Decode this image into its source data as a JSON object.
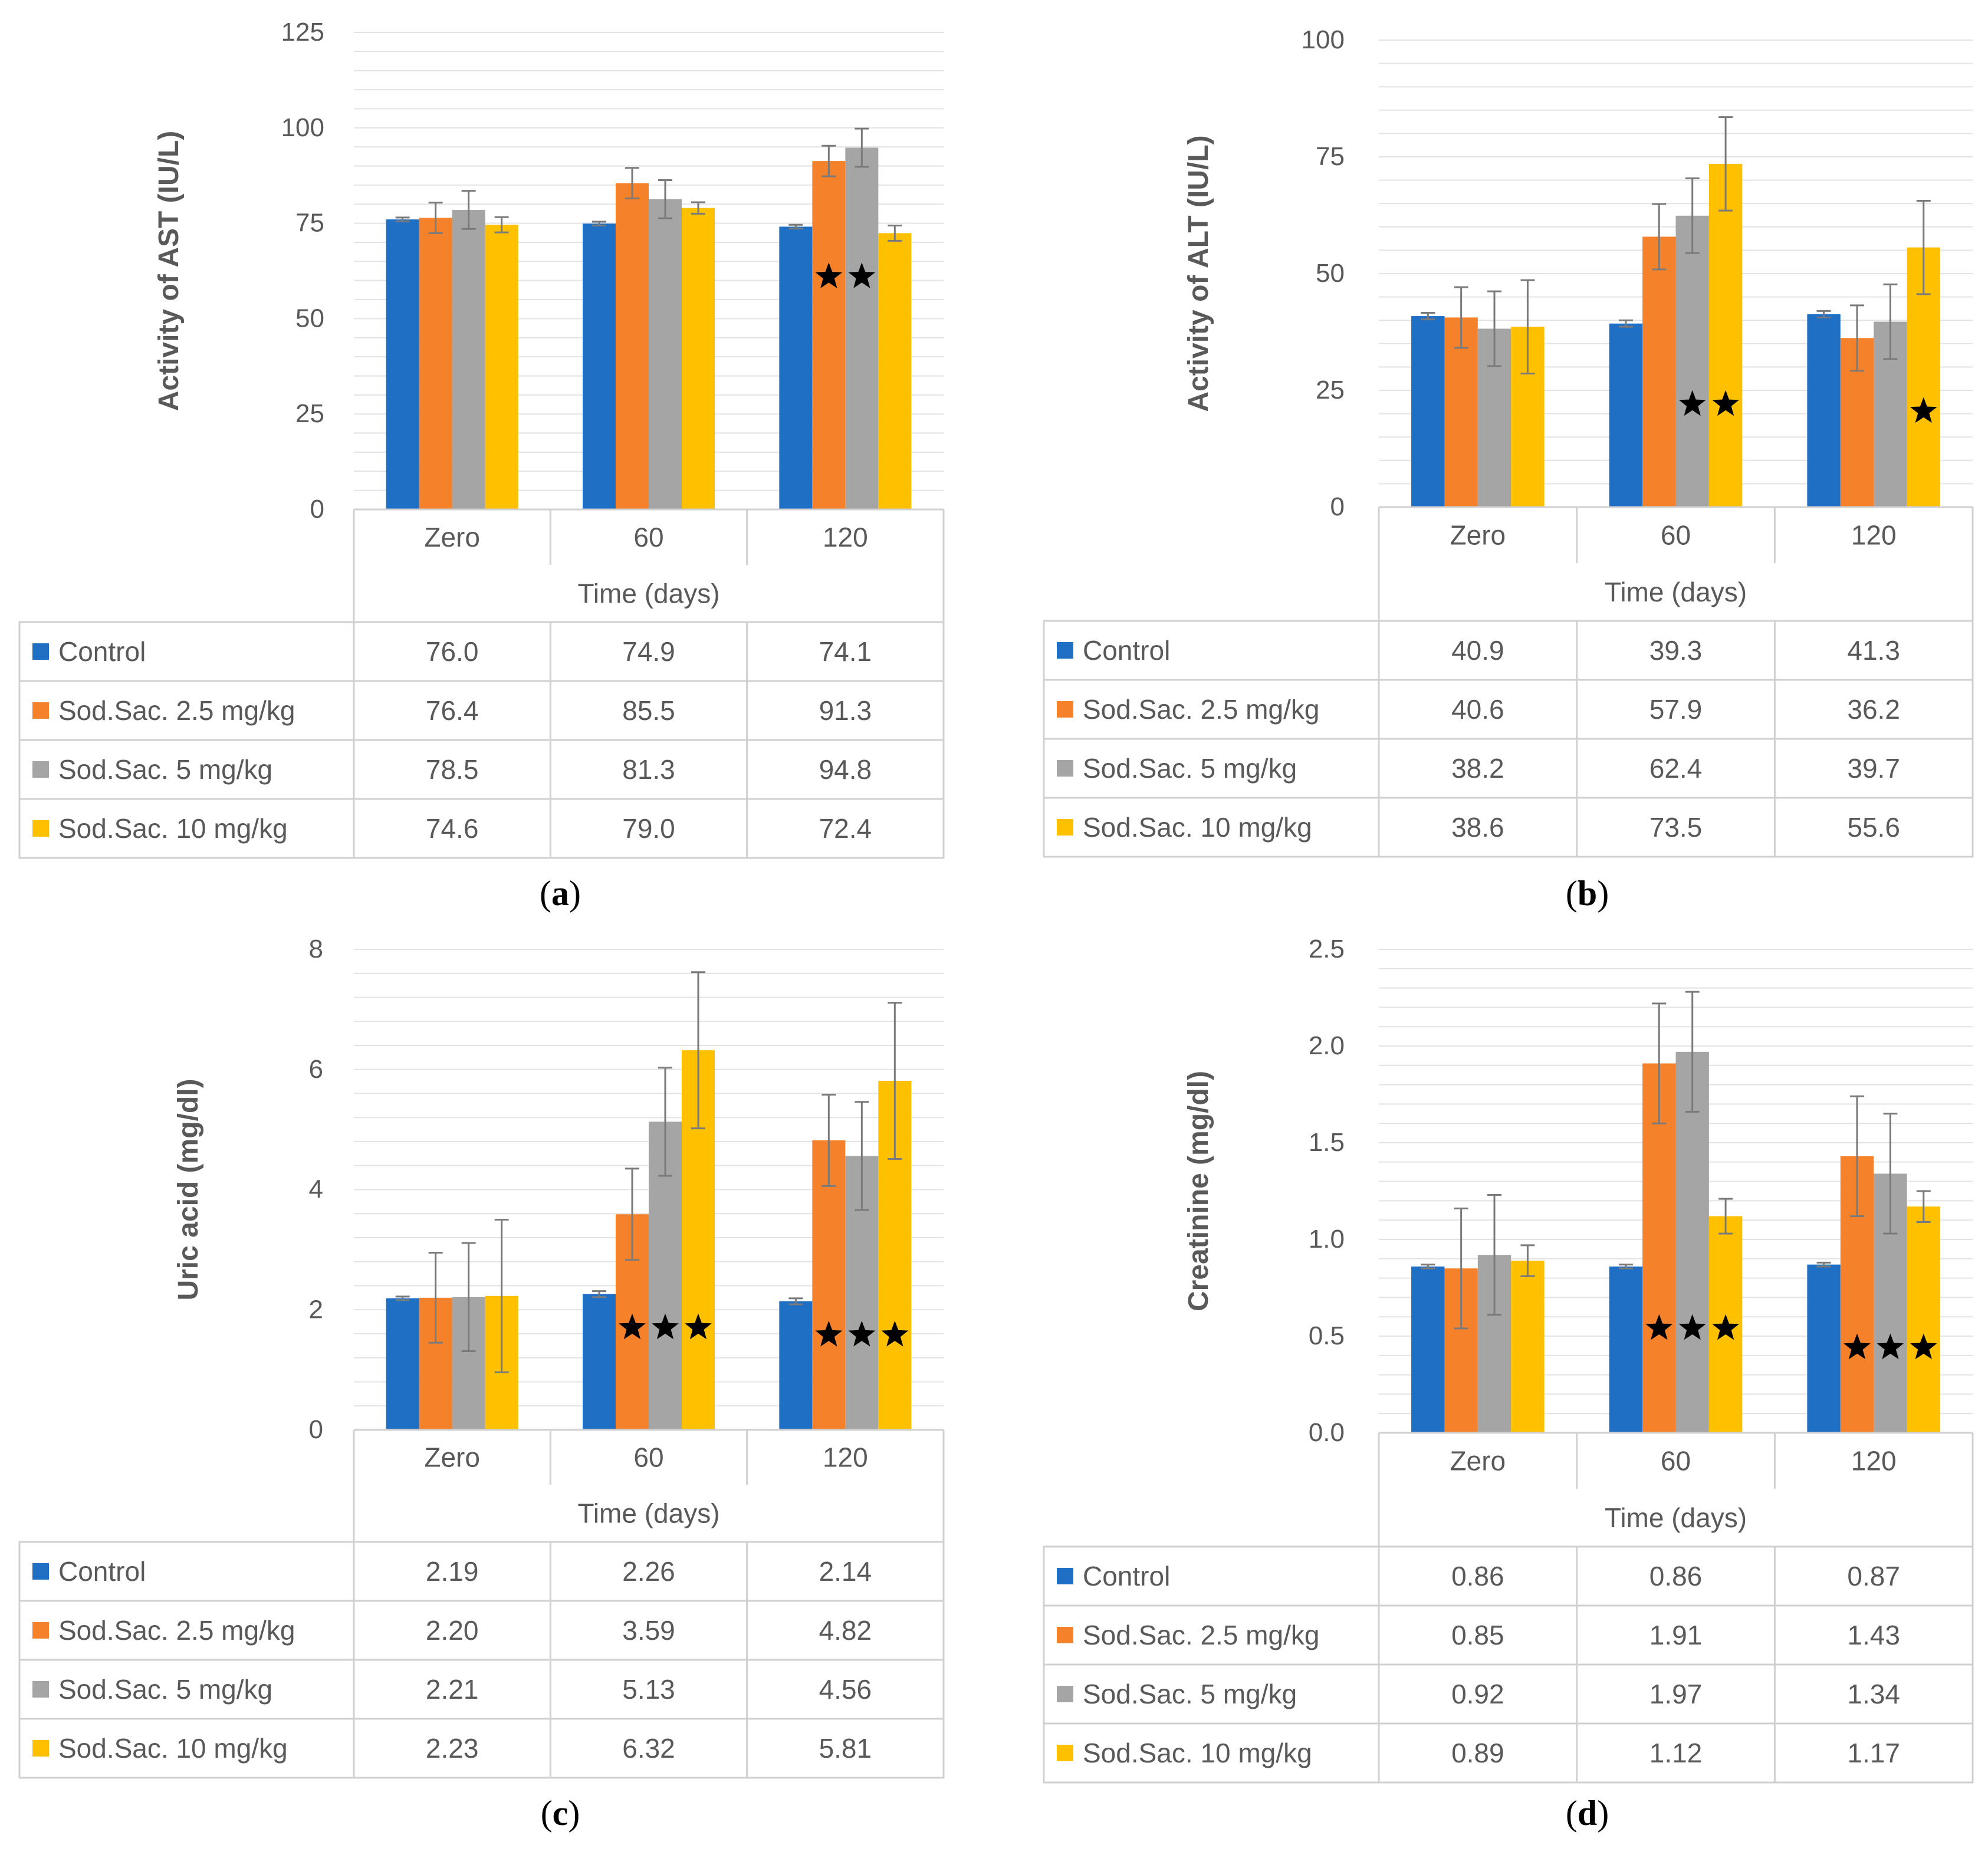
{
  "shared": {
    "categories": [
      "Zero",
      "60",
      "120"
    ],
    "xlabel": "Time (days)",
    "series_names": [
      "Control",
      "Sod.Sac. 2.5 mg/kg",
      "Sod.Sac. 5 mg/kg",
      "Sod.Sac. 10 mg/kg"
    ],
    "colors": {
      "control": "#1f6fc5",
      "dose_2_5": "#f5822a",
      "dose_5": "#a5a5a5",
      "dose_10": "#ffc000",
      "grid": "#e3e3e3",
      "axis": "#d0d0d0",
      "text": "#595959",
      "error_bar": "#7a7a7a",
      "caption": "#000000"
    }
  },
  "chart_data": [
    {
      "type": "bar",
      "panel": "a",
      "caption": "(a)",
      "ylabel": "Activity of AST (IU/L)",
      "ylim": [
        0,
        125
      ],
      "ytick_labels": [
        "0",
        "25",
        "50",
        "75",
        "100",
        "125"
      ],
      "ytick_values": [
        0,
        25,
        50,
        75,
        100,
        125
      ],
      "minor_step": 5,
      "categories": [
        "Zero",
        "60",
        "120"
      ],
      "xlabel": "Time (days)",
      "series": [
        {
          "name": "Control",
          "values": [
            76.0,
            74.9,
            74.1
          ],
          "labels": [
            "76.0",
            "74.9",
            "74.1"
          ],
          "errors": [
            0.5,
            0.5,
            0.5
          ]
        },
        {
          "name": "Sod.Sac. 2.5 mg/kg",
          "values": [
            76.4,
            85.5,
            91.3
          ],
          "labels": [
            "76.4",
            "85.5",
            "91.3"
          ],
          "errors": [
            4,
            4,
            4
          ]
        },
        {
          "name": "Sod.Sac. 5 mg/kg",
          "values": [
            78.5,
            81.3,
            94.8
          ],
          "labels": [
            "78.5",
            "81.3",
            "94.8"
          ],
          "errors": [
            5,
            5,
            5
          ]
        },
        {
          "name": "Sod.Sac. 10 mg/kg",
          "values": [
            74.6,
            79.0,
            72.4
          ],
          "labels": [
            "74.6",
            "79.0",
            "72.4"
          ],
          "errors": [
            2,
            1.5,
            2
          ]
        }
      ],
      "stars": [
        {
          "category": 2,
          "series": 1,
          "value": 61
        },
        {
          "category": 2,
          "series": 2,
          "value": 61
        }
      ]
    },
    {
      "type": "bar",
      "panel": "b",
      "caption": "(b)",
      "ylabel": "Activity of ALT (IU/L)",
      "ylim": [
        0,
        100
      ],
      "ytick_labels": [
        "0",
        "25",
        "50",
        "75",
        "100"
      ],
      "ytick_values": [
        0,
        25,
        50,
        75,
        100
      ],
      "minor_step": 5,
      "categories": [
        "Zero",
        "60",
        "120"
      ],
      "xlabel": "Time (days)",
      "series": [
        {
          "name": "Control",
          "values": [
            40.9,
            39.3,
            41.3
          ],
          "labels": [
            "40.9",
            "39.3",
            "41.3"
          ],
          "errors": [
            0.7,
            0.7,
            0.7
          ]
        },
        {
          "name": "Sod.Sac. 2.5 mg/kg",
          "values": [
            40.6,
            57.9,
            36.2
          ],
          "labels": [
            "40.6",
            "57.9",
            "36.2"
          ],
          "errors": [
            6.5,
            7,
            7
          ]
        },
        {
          "name": "Sod.Sac. 5 mg/kg",
          "values": [
            38.2,
            62.4,
            39.7
          ],
          "labels": [
            "38.2",
            "62.4",
            "39.7"
          ],
          "errors": [
            8,
            8,
            8
          ]
        },
        {
          "name": "Sod.Sac. 10 mg/kg",
          "values": [
            38.6,
            73.5,
            55.6
          ],
          "labels": [
            "38.6",
            "73.5",
            "55.6"
          ],
          "errors": [
            10,
            10,
            10
          ]
        }
      ],
      "stars": [
        {
          "category": 1,
          "series": 2,
          "value": 22
        },
        {
          "category": 1,
          "series": 3,
          "value": 22
        },
        {
          "category": 2,
          "series": 3,
          "value": 20.5
        }
      ]
    },
    {
      "type": "bar",
      "panel": "c",
      "caption": "(c)",
      "ylabel": "Uric acid (mg/dl)",
      "ylim": [
        0,
        8
      ],
      "ytick_labels": [
        "0",
        "2",
        "4",
        "6",
        "8"
      ],
      "ytick_values": [
        0,
        2,
        4,
        6,
        8
      ],
      "minor_step": 0.4,
      "categories": [
        "Zero",
        "60",
        "120"
      ],
      "xlabel": "Time (days)",
      "series": [
        {
          "name": "Control",
          "values": [
            2.19,
            2.26,
            2.14
          ],
          "labels": [
            "2.19",
            "2.26",
            "2.14"
          ],
          "errors": [
            0.03,
            0.05,
            0.05
          ]
        },
        {
          "name": "Sod.Sac. 2.5 mg/kg",
          "values": [
            2.2,
            3.59,
            4.82
          ],
          "labels": [
            "2.20",
            "3.59",
            "4.82"
          ],
          "errors": [
            0.75,
            0.76,
            0.76
          ]
        },
        {
          "name": "Sod.Sac. 5 mg/kg",
          "values": [
            2.21,
            5.13,
            4.56
          ],
          "labels": [
            "2.21",
            "5.13",
            "4.56"
          ],
          "errors": [
            0.9,
            0.9,
            0.9
          ]
        },
        {
          "name": "Sod.Sac. 10 mg/kg",
          "values": [
            2.23,
            6.32,
            5.81
          ],
          "labels": [
            "2.23",
            "6.32",
            "5.81"
          ],
          "errors": [
            1.27,
            1.3,
            1.3
          ]
        }
      ],
      "stars": [
        {
          "category": 1,
          "series": 1,
          "value": 1.7
        },
        {
          "category": 1,
          "series": 2,
          "value": 1.7
        },
        {
          "category": 1,
          "series": 3,
          "value": 1.7
        },
        {
          "category": 2,
          "series": 1,
          "value": 1.58
        },
        {
          "category": 2,
          "series": 2,
          "value": 1.58
        },
        {
          "category": 2,
          "series": 3,
          "value": 1.58
        }
      ]
    },
    {
      "type": "bar",
      "panel": "d",
      "caption": "(d)",
      "ylabel": "Creatinine (mg/dl)",
      "ylim": [
        0,
        2.5
      ],
      "ytick_labels": [
        "0.0",
        "0.5",
        "1.0",
        "1.5",
        "2.0",
        "2.5"
      ],
      "ytick_values": [
        0,
        0.5,
        1.0,
        1.5,
        2.0,
        2.5
      ],
      "minor_step": 0.1,
      "categories": [
        "Zero",
        "60",
        "120"
      ],
      "xlabel": "Time (days)",
      "series": [
        {
          "name": "Control",
          "values": [
            0.86,
            0.86,
            0.87
          ],
          "labels": [
            "0.86",
            "0.86",
            "0.87"
          ],
          "errors": [
            0.01,
            0.01,
            0.01
          ]
        },
        {
          "name": "Sod.Sac. 2.5 mg/kg",
          "values": [
            0.85,
            1.91,
            1.43
          ],
          "labels": [
            "0.85",
            "1.91",
            "1.43"
          ],
          "errors": [
            0.31,
            0.31,
            0.31
          ]
        },
        {
          "name": "Sod.Sac. 5 mg/kg",
          "values": [
            0.92,
            1.97,
            1.34
          ],
          "labels": [
            "0.92",
            "1.97",
            "1.34"
          ],
          "errors": [
            0.31,
            0.31,
            0.31
          ]
        },
        {
          "name": "Sod.Sac. 10 mg/kg",
          "values": [
            0.89,
            1.12,
            1.17
          ],
          "labels": [
            "0.89",
            "1.12",
            "1.17"
          ],
          "errors": [
            0.08,
            0.09,
            0.08
          ]
        }
      ],
      "stars": [
        {
          "category": 1,
          "series": 1,
          "value": 0.54
        },
        {
          "category": 1,
          "series": 2,
          "value": 0.54
        },
        {
          "category": 1,
          "series": 3,
          "value": 0.54
        },
        {
          "category": 2,
          "series": 1,
          "value": 0.44
        },
        {
          "category": 2,
          "series": 2,
          "value": 0.44
        },
        {
          "category": 2,
          "series": 3,
          "value": 0.44
        }
      ]
    }
  ]
}
